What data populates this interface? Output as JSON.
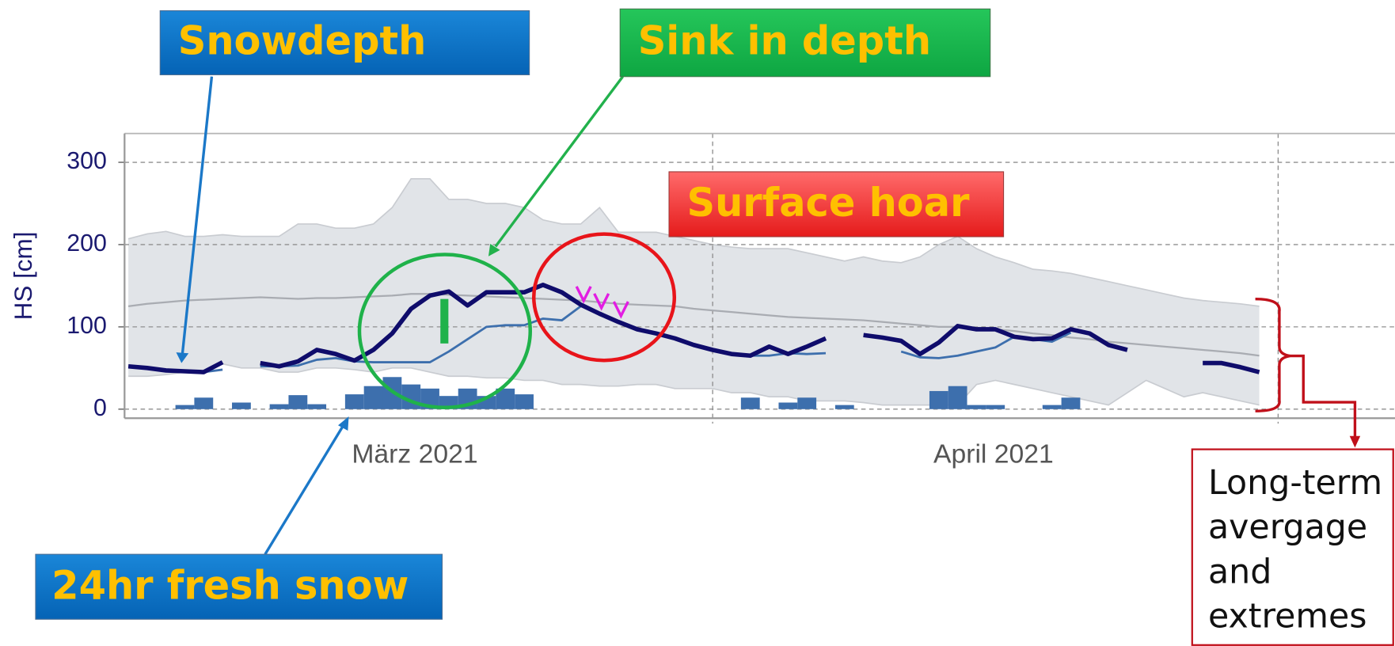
{
  "chart_data": {
    "type": "line",
    "ylabel": "HS [cm]",
    "ylim": [
      -11,
      335
    ],
    "yticks": [
      0,
      100,
      200,
      300
    ],
    "grid": true,
    "xlim": [
      -0.2,
      67.2
    ],
    "xticks": [
      {
        "value": 15.2,
        "label": "März 2021"
      },
      {
        "value": 45.9,
        "label": "April 2021"
      }
    ],
    "xgrid": [
      31,
      61
    ],
    "x": [
      0,
      1,
      2,
      3,
      4,
      5,
      6,
      7,
      8,
      9,
      10,
      11,
      12,
      13,
      14,
      15,
      16,
      17,
      18,
      19,
      20,
      21,
      22,
      23,
      24,
      25,
      26,
      27,
      28,
      29,
      30,
      31,
      32,
      33,
      34,
      35,
      36,
      37,
      38,
      39,
      40,
      41,
      42,
      43,
      44,
      45,
      46,
      47,
      48,
      49,
      50,
      51,
      52,
      53,
      54,
      55,
      56,
      57,
      58,
      59,
      60
    ],
    "band": {
      "color": "#e1e4e8",
      "max": [
        207,
        213,
        216,
        210,
        210,
        212,
        210,
        210,
        210,
        225,
        225,
        220,
        220,
        225,
        245,
        280,
        280,
        255,
        255,
        250,
        250,
        245,
        230,
        225,
        225,
        245,
        215,
        215,
        215,
        210,
        205,
        200,
        197,
        195,
        195,
        195,
        190,
        185,
        180,
        185,
        180,
        178,
        185,
        200,
        210,
        195,
        185,
        178,
        170,
        168,
        165,
        160,
        155,
        150,
        145,
        140,
        135,
        132,
        130,
        128,
        125
      ],
      "min": [
        40,
        40,
        42,
        45,
        45,
        55,
        50,
        50,
        45,
        45,
        50,
        50,
        48,
        45,
        50,
        50,
        45,
        40,
        40,
        38,
        38,
        35,
        35,
        30,
        30,
        28,
        28,
        30,
        30,
        25,
        25,
        25,
        20,
        20,
        15,
        15,
        10,
        10,
        10,
        8,
        5,
        5,
        5,
        5,
        5,
        30,
        35,
        30,
        25,
        20,
        15,
        10,
        5,
        20,
        35,
        25,
        15,
        20,
        15,
        10,
        5
      ]
    },
    "mean": {
      "color": "#a9acb2",
      "values": [
        125,
        128,
        130,
        132,
        133,
        134,
        135,
        136,
        135,
        134,
        135,
        135,
        136,
        137,
        138,
        140,
        140,
        139,
        138,
        137,
        136,
        135,
        134,
        133,
        132,
        130,
        128,
        127,
        126,
        125,
        122,
        120,
        118,
        116,
        114,
        112,
        111,
        110,
        109,
        108,
        106,
        104,
        102,
        100,
        100,
        99,
        97,
        95,
        92,
        90,
        87,
        85,
        82,
        80,
        78,
        76,
        74,
        72,
        70,
        68,
        65
      ]
    },
    "series": [
      {
        "color": "#3d6fad",
        "values": [
          null,
          null,
          null,
          null,
          45,
          48,
          null,
          52,
          52,
          53,
          60,
          62,
          58,
          57,
          57,
          57,
          57,
          70,
          85,
          100,
          102,
          102,
          110,
          108,
          125,
          null,
          null,
          null,
          null,
          null,
          null,
          null,
          null,
          65,
          65,
          68,
          67,
          68,
          null,
          null,
          null,
          70,
          63,
          62,
          65,
          70,
          75,
          88,
          85,
          82,
          93,
          null,
          null,
          null,
          null,
          null,
          null,
          null,
          null,
          null,
          null
        ]
      },
      {
        "color": "#0f0c6b",
        "values": [
          52,
          50,
          47,
          46,
          45,
          57,
          null,
          56,
          52,
          58,
          72,
          67,
          59,
          72,
          92,
          122,
          138,
          143,
          126,
          142,
          142,
          142,
          151,
          142,
          127,
          116,
          106,
          97,
          92,
          86,
          78,
          72,
          67,
          65,
          76,
          67,
          76,
          86,
          null,
          90,
          87,
          83,
          67,
          81,
          101,
          97,
          97,
          88,
          85,
          86,
          97,
          92,
          78,
          72,
          null,
          null,
          null,
          56,
          56,
          51,
          45
        ]
      }
    ],
    "bars": {
      "color": "#3d6fad",
      "values": [
        0,
        0,
        0,
        5,
        14,
        0,
        8,
        0,
        6,
        17,
        6,
        0,
        18,
        28,
        39,
        30,
        25,
        16,
        25,
        16,
        25,
        18,
        0,
        0,
        0,
        0,
        0,
        0,
        0,
        0,
        0,
        0,
        0,
        14,
        0,
        8,
        14,
        0,
        5,
        0,
        0,
        0,
        0,
        22,
        28,
        5,
        5,
        0,
        0,
        5,
        14,
        0,
        0,
        0,
        0,
        0,
        0,
        0,
        0,
        0,
        0
      ]
    },
    "annotations": {
      "snowdepth": "Snowdepth",
      "sink": "Sink in depth",
      "hoar": "Surface hoar",
      "fresh": "24hr fresh snow",
      "longterm": [
        "Long-term",
        "avergage",
        "and",
        "extremes"
      ]
    }
  }
}
